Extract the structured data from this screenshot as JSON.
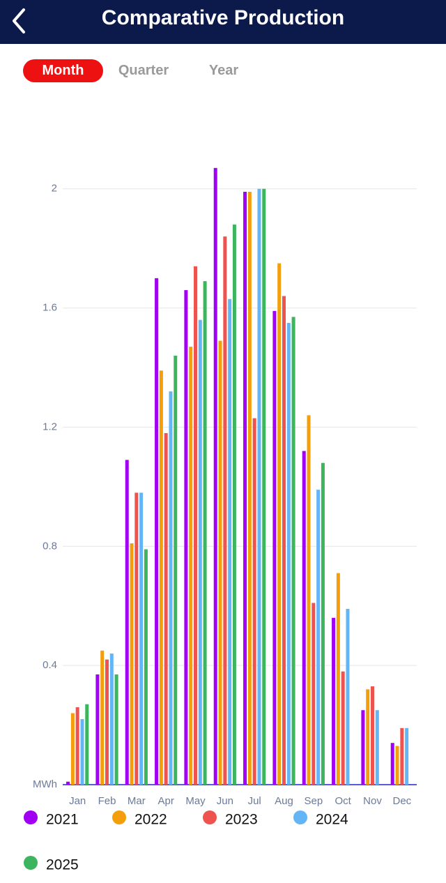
{
  "header": {
    "title": "Comparative Production"
  },
  "tabs": [
    "Month",
    "Quarter",
    "Year"
  ],
  "chart_data": {
    "type": "bar",
    "categories": [
      "Jan",
      "Feb",
      "Mar",
      "Apr",
      "May",
      "Jun",
      "Jul",
      "Aug",
      "Sep",
      "Oct",
      "Nov",
      "Dec"
    ],
    "series": [
      {
        "name": "2021",
        "color": "#a100f2",
        "values": [
          0.01,
          0.37,
          1.09,
          1.7,
          1.66,
          2.07,
          1.99,
          1.59,
          1.12,
          0.56,
          0.25,
          0.14
        ]
      },
      {
        "name": "2022",
        "color": "#f59e0b",
        "values": [
          0.24,
          0.45,
          0.81,
          1.39,
          1.47,
          1.49,
          1.99,
          1.75,
          1.24,
          0.71,
          0.32,
          0.13
        ]
      },
      {
        "name": "2023",
        "color": "#ef5350",
        "values": [
          0.26,
          0.42,
          0.98,
          1.18,
          1.74,
          1.84,
          1.23,
          1.64,
          0.61,
          0.38,
          0.33,
          0.19
        ]
      },
      {
        "name": "2024",
        "color": "#64b5f6",
        "values": [
          0.22,
          0.44,
          0.98,
          1.32,
          1.56,
          1.63,
          2.0,
          1.55,
          0.99,
          0.59,
          0.25,
          0.19
        ]
      },
      {
        "name": "2025",
        "color": "#3cb55e",
        "values": [
          0.27,
          0.37,
          0.79,
          1.44,
          1.69,
          1.88,
          2.0,
          1.57,
          1.08,
          null,
          null,
          null
        ]
      }
    ],
    "ylim": [
      0,
      2.1
    ],
    "yticks": [
      {
        "value": 0,
        "label": "MWh"
      },
      0.4,
      0.8,
      1.2,
      1.6,
      2
    ],
    "grid": true
  }
}
